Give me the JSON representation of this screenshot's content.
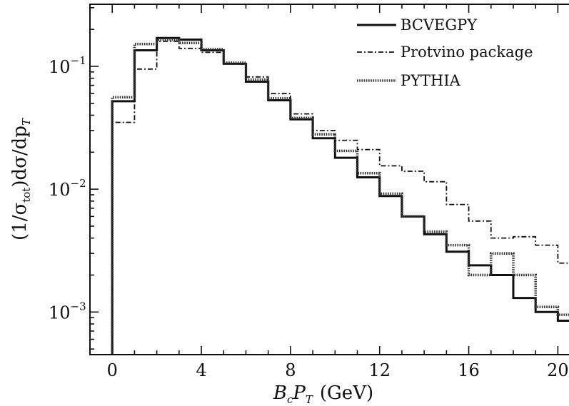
{
  "chart_data": {
    "type": "line",
    "title": "",
    "xlabel_parts": {
      "b": "B",
      "b_sub": "c",
      "p": "P",
      "p_sub": "T",
      "unit": "(GeV)"
    },
    "ylabel_parts": {
      "lead": "(1/σ",
      "sub": "tot",
      "trail": ")dσ/dp",
      "trail_sub": "T"
    },
    "xlim": [
      -1,
      20.5
    ],
    "ylim": [
      0.00045,
      0.32
    ],
    "yscale": "log",
    "xticks": [
      0,
      4,
      8,
      12,
      16,
      20
    ],
    "xtick_labels": [
      "0",
      "4",
      "8",
      "12",
      "16",
      "20"
    ],
    "yticks": [
      {
        "value": 0.1,
        "base": "10",
        "exp": "−1"
      },
      {
        "value": 0.01,
        "base": "10",
        "exp": "−2"
      },
      {
        "value": 0.001,
        "base": "10",
        "exp": "−3"
      }
    ],
    "legend_position": "top-right",
    "bin_edges": [
      0,
      1,
      2,
      3,
      4,
      5,
      6,
      7,
      8,
      9,
      10,
      11,
      12,
      13,
      14,
      15,
      16,
      17,
      18,
      19,
      20,
      21
    ],
    "series": [
      {
        "name": "BCVEGPY",
        "style": "solid",
        "values": [
          0.052,
          0.135,
          0.17,
          0.165,
          0.135,
          0.105,
          0.075,
          0.053,
          0.037,
          0.026,
          0.018,
          0.0125,
          0.0088,
          0.006,
          0.0043,
          0.0031,
          0.0024,
          0.002,
          0.0013,
          0.001,
          0.00085
        ]
      },
      {
        "name": "Protvino package",
        "style": "dashdot",
        "values": [
          0.035,
          0.095,
          0.16,
          0.14,
          0.13,
          0.105,
          0.082,
          0.06,
          0.041,
          0.03,
          0.025,
          0.021,
          0.0155,
          0.014,
          0.0115,
          0.0075,
          0.0055,
          0.004,
          0.0041,
          0.0035,
          0.0025
        ]
      },
      {
        "name": "PYTHIA",
        "style": "dotted",
        "values": [
          0.056,
          0.152,
          0.165,
          0.155,
          0.138,
          0.107,
          0.078,
          0.055,
          0.038,
          0.028,
          0.0205,
          0.0135,
          0.0092,
          0.006,
          0.0045,
          0.0035,
          0.002,
          0.003,
          0.002,
          0.0011,
          0.00095
        ]
      }
    ]
  }
}
